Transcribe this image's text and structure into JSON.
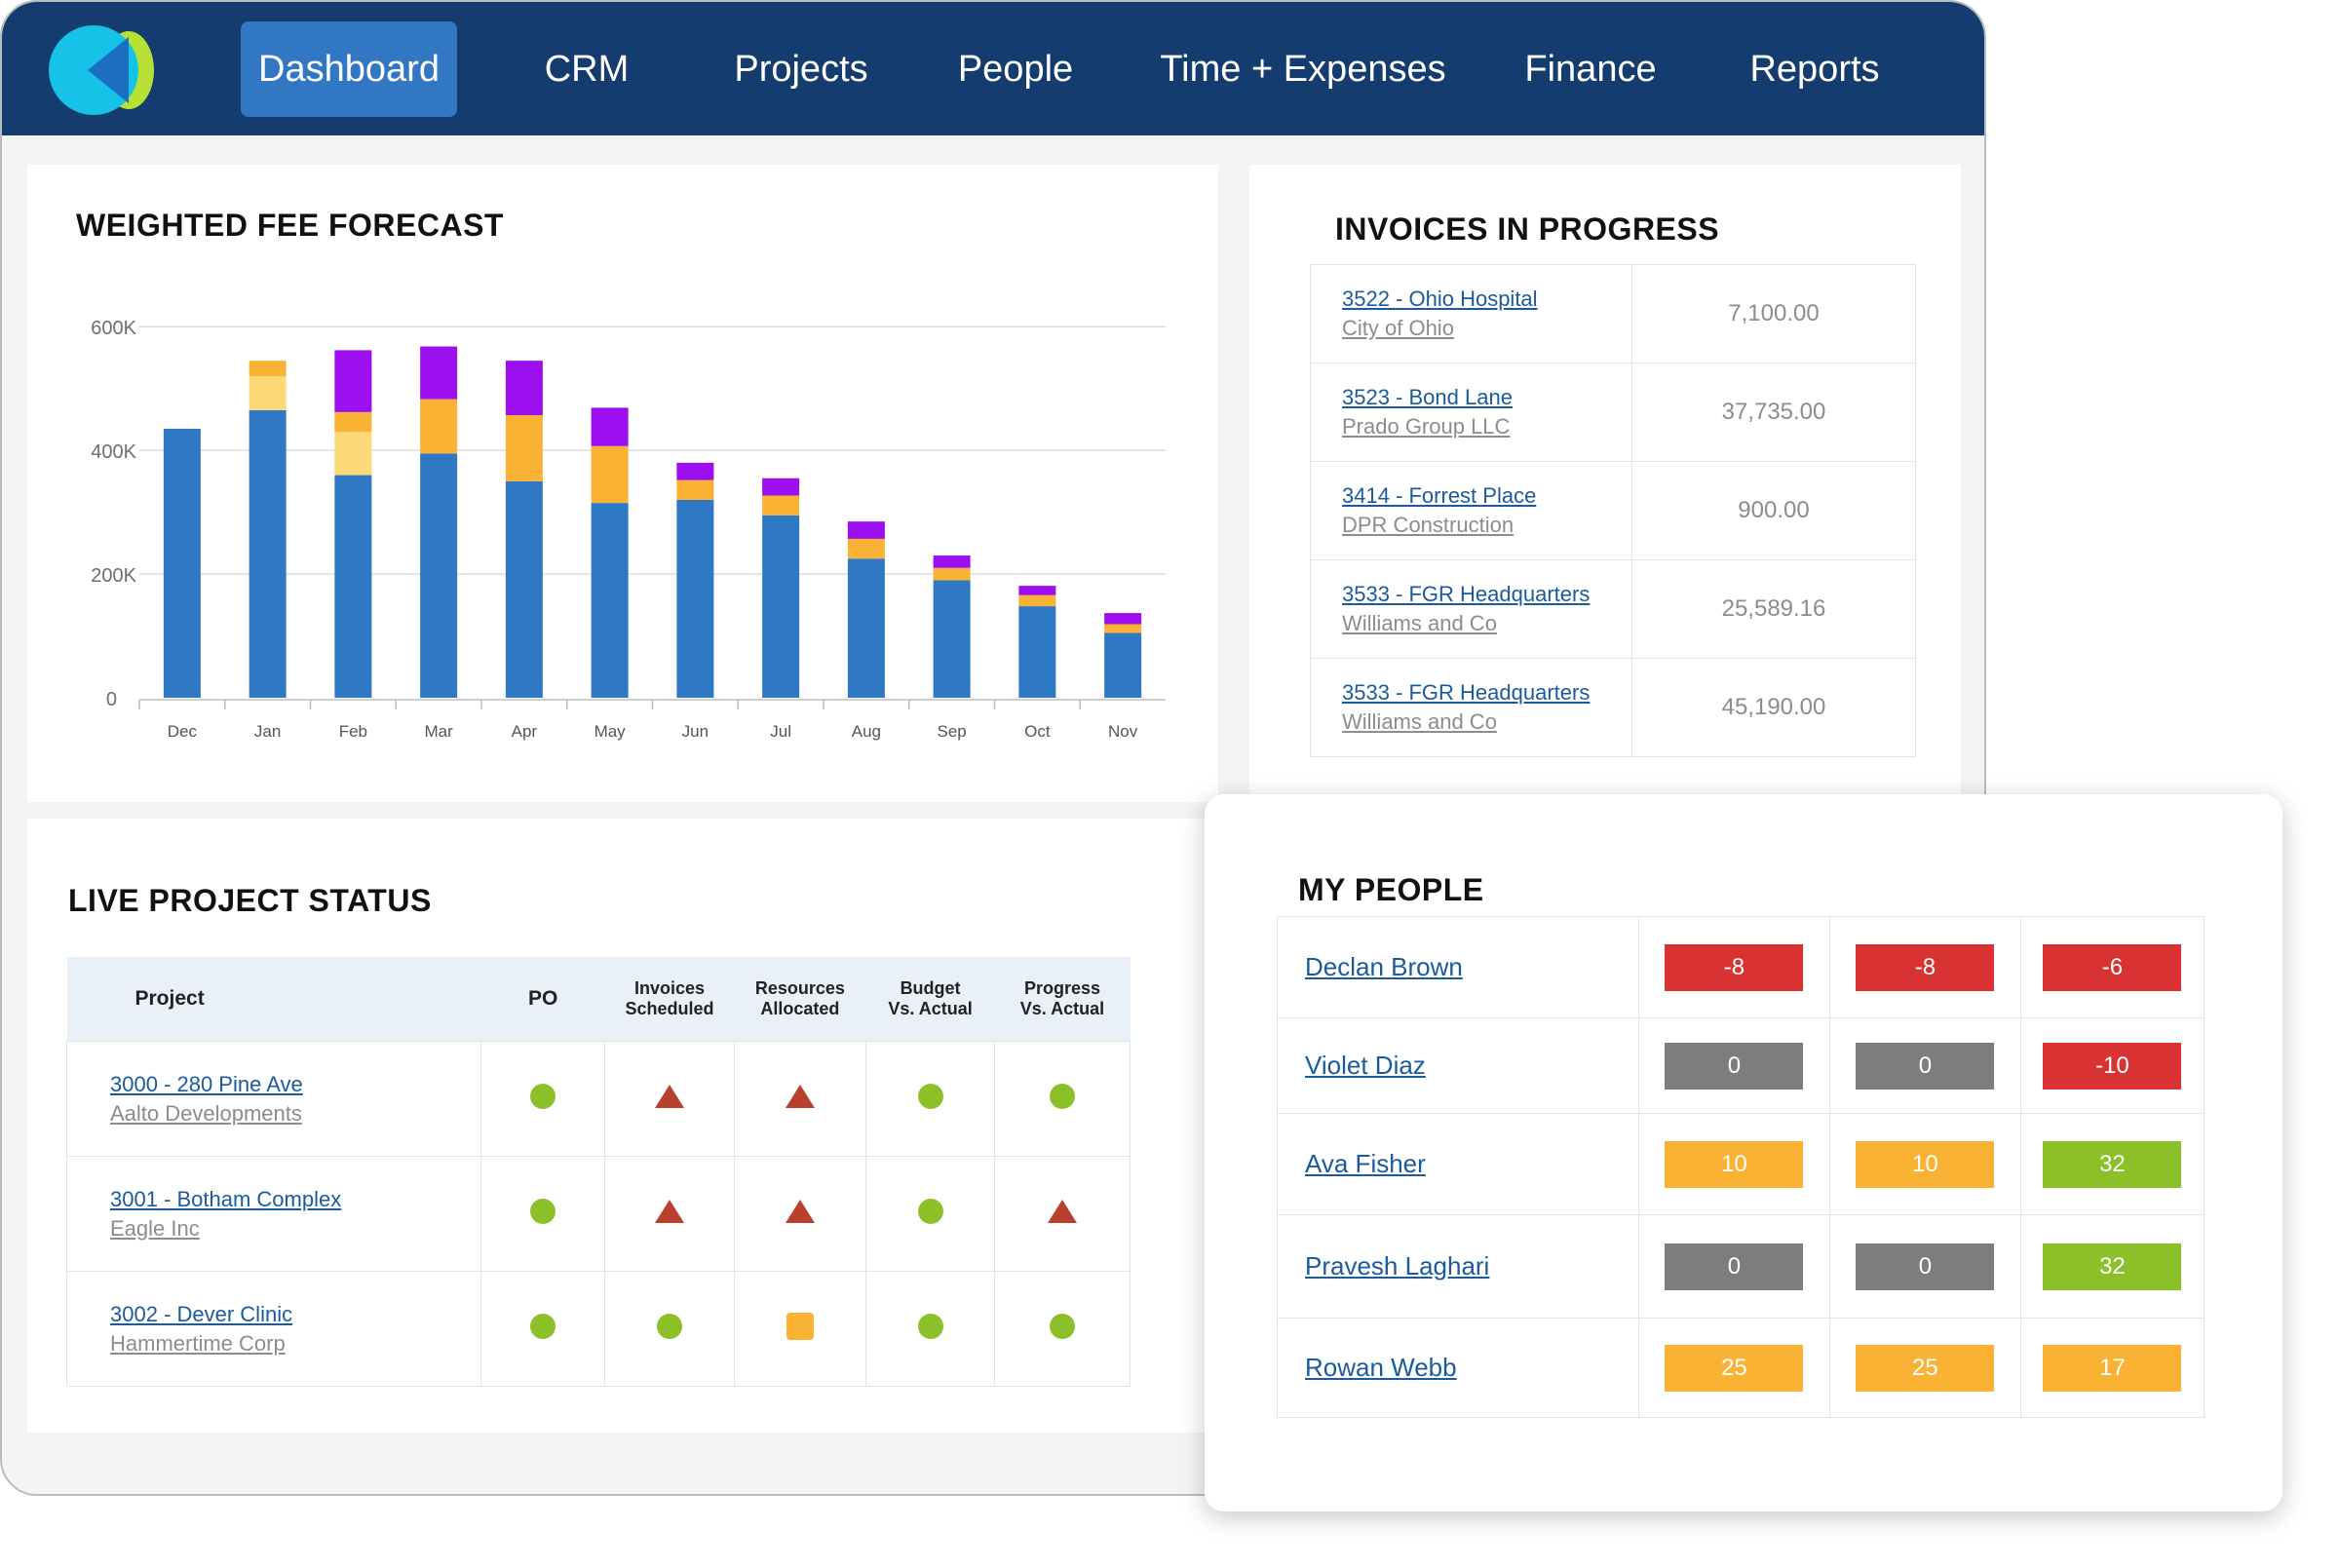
{
  "nav": {
    "items": [
      "Dashboard",
      "CRM",
      "Projects",
      "People",
      "Time + Expenses",
      "Finance",
      "Reports"
    ],
    "active": "Dashboard"
  },
  "colors": {
    "nav_bg": "#143c6e",
    "nav_active": "#3277c4",
    "bar_blue": "#2f78c4",
    "bar_light_orange": "#fdd878",
    "bar_orange": "#f9b233",
    "bar_purple": "#9b0ff0",
    "status_green": "#8cc029",
    "status_red": "#b8402f",
    "status_orange": "#f9b233",
    "badge_red": "#d93232",
    "badge_gray": "#7d7d7d",
    "badge_orange": "#f9b233",
    "badge_green": "#8cc029"
  },
  "forecast": {
    "title": "WEIGHTED FEE FORECAST"
  },
  "chart_data": {
    "type": "bar",
    "stacked": true,
    "categories": [
      "Dec",
      "Jan",
      "Feb",
      "Mar",
      "Apr",
      "May",
      "Jun",
      "Jul",
      "Aug",
      "Sep",
      "Oct",
      "Nov"
    ],
    "series": [
      {
        "values": [
          435000,
          465000,
          360000,
          395000,
          350000,
          315000,
          320000,
          295000,
          225000,
          190000,
          148000,
          105000
        ]
      },
      {
        "values": [
          0,
          55000,
          70000,
          0,
          0,
          0,
          0,
          0,
          0,
          0,
          0,
          0
        ]
      },
      {
        "values": [
          0,
          25000,
          32000,
          88000,
          107000,
          92000,
          32000,
          32000,
          32000,
          20000,
          18000,
          14000
        ]
      },
      {
        "values": [
          0,
          0,
          100000,
          85000,
          88000,
          62000,
          28000,
          28000,
          28000,
          20000,
          15000,
          18000
        ]
      }
    ],
    "yticks": [
      "0",
      "200K",
      "400K",
      "600K"
    ],
    "ylim": [
      0,
      665000
    ],
    "grid": true,
    "title": "WEIGHTED FEE FORECAST",
    "xlabel": "",
    "ylabel": ""
  },
  "invoices": {
    "title": "INVOICES IN PROGRESS",
    "rows": [
      {
        "name": "3522 - Ohio Hospital",
        "client": "City of Ohio",
        "amount": "7,100.00"
      },
      {
        "name": "3523 - Bond Lane",
        "client": "Prado Group LLC",
        "amount": "37,735.00"
      },
      {
        "name": "3414 - Forrest Place",
        "client": "DPR Construction",
        "amount": "900.00"
      },
      {
        "name": "3533 - FGR Headquarters",
        "client": "Williams and Co",
        "amount": "25,589.16"
      },
      {
        "name": "3533 - FGR Headquarters",
        "client": "Williams and Co",
        "amount": "45,190.00"
      }
    ]
  },
  "project_status": {
    "title": "LIVE PROJECT STATUS",
    "headers": {
      "project": "Project",
      "po": "PO",
      "invoices_1": "Invoices",
      "invoices_2": "Scheduled",
      "resources_1": "Resources",
      "resources_2": "Allocated",
      "budget_1": "Budget",
      "budget_2": "Vs. Actual",
      "progress_1": "Progress",
      "progress_2": "Vs. Actual"
    },
    "rows": [
      {
        "name": "3000 - 280 Pine Ave",
        "client": "Aalto Developments",
        "status": [
          "green-dot",
          "red-triangle",
          "red-triangle",
          "green-dot",
          "green-dot"
        ]
      },
      {
        "name": "3001 - Botham Complex",
        "client": "Eagle Inc",
        "status": [
          "green-dot",
          "red-triangle",
          "red-triangle",
          "green-dot",
          "red-triangle"
        ]
      },
      {
        "name": "3002 - Dever Clinic",
        "client": "Hammertime Corp",
        "status": [
          "green-dot",
          "green-dot",
          "orange-square",
          "green-dot",
          "green-dot"
        ]
      }
    ]
  },
  "people": {
    "title": "MY PEOPLE",
    "rows": [
      {
        "name": "Declan Brown",
        "values": [
          "-8",
          "-8",
          "-6"
        ],
        "colors": [
          "red",
          "red",
          "red"
        ]
      },
      {
        "name": "Violet Diaz",
        "values": [
          "0",
          "0",
          "-10"
        ],
        "colors": [
          "gray",
          "gray",
          "red"
        ]
      },
      {
        "name": "Ava Fisher",
        "values": [
          "10",
          "10",
          "32"
        ],
        "colors": [
          "orange",
          "orange",
          "green"
        ]
      },
      {
        "name": "Pravesh Laghari",
        "values": [
          "0",
          "0",
          "32"
        ],
        "colors": [
          "gray",
          "gray",
          "green"
        ]
      },
      {
        "name": "Rowan Webb",
        "values": [
          "25",
          "25",
          "17"
        ],
        "colors": [
          "orange",
          "orange",
          "orange"
        ]
      }
    ]
  }
}
